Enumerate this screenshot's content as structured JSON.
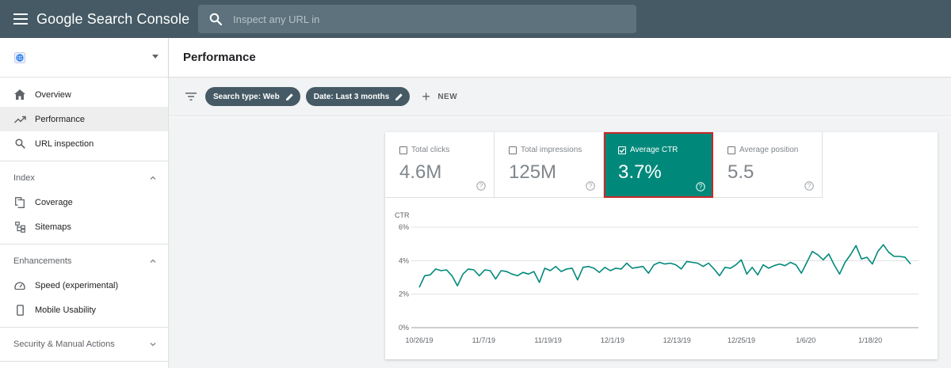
{
  "app": {
    "title": "Google Search Console"
  },
  "search": {
    "placeholder": "Inspect any URL in"
  },
  "sidebar": {
    "top_items": [
      {
        "label": "Overview"
      },
      {
        "label": "Performance"
      },
      {
        "label": "URL inspection"
      }
    ],
    "sections": [
      {
        "title": "Index",
        "items": [
          {
            "label": "Coverage"
          },
          {
            "label": "Sitemaps"
          }
        ]
      },
      {
        "title": "Enhancements",
        "items": [
          {
            "label": "Speed (experimental)"
          },
          {
            "label": "Mobile Usability"
          }
        ]
      },
      {
        "title": "Security & Manual Actions"
      }
    ]
  },
  "page": {
    "title": "Performance"
  },
  "filters": {
    "chips": [
      {
        "label": "Search type: Web"
      },
      {
        "label": "Date: Last 3 months"
      }
    ],
    "new_label": "NEW"
  },
  "metrics": [
    {
      "label": "Total clicks",
      "value": "4.6M",
      "selected": false
    },
    {
      "label": "Total impressions",
      "value": "125M",
      "selected": false
    },
    {
      "label": "Average CTR",
      "value": "3.7%",
      "selected": true
    },
    {
      "label": "Average position",
      "value": "5.5",
      "selected": false
    }
  ],
  "colors": {
    "topbar": "#455a64",
    "accent": "#00897b",
    "highlight_border": "#c62828"
  },
  "chart_data": {
    "type": "line",
    "ylabel": "CTR",
    "ylim": [
      0,
      6
    ],
    "yticks": [
      "0%",
      "2%",
      "4%",
      "6%"
    ],
    "ytick_values": [
      0,
      2,
      4,
      6
    ],
    "xtick_labels": [
      "10/26/19",
      "11/7/19",
      "11/19/19",
      "12/1/19",
      "12/13/19",
      "12/25/19",
      "1/6/20",
      "1/18/20"
    ],
    "series": [
      {
        "name": "Average CTR",
        "values": [
          2.4,
          3.1,
          3.15,
          3.5,
          3.4,
          3.45,
          3.1,
          2.5,
          3.2,
          3.5,
          3.45,
          3.1,
          3.45,
          3.4,
          2.9,
          3.4,
          3.35,
          3.2,
          3.1,
          3.3,
          3.2,
          3.35,
          2.7,
          3.55,
          3.4,
          3.65,
          3.35,
          3.5,
          3.55,
          2.85,
          3.6,
          3.65,
          3.55,
          3.3,
          3.6,
          3.4,
          3.55,
          3.5,
          3.85,
          3.55,
          3.6,
          3.65,
          3.25,
          3.75,
          3.9,
          3.8,
          3.85,
          3.75,
          3.5,
          3.95,
          3.9,
          3.85,
          3.65,
          3.85,
          3.5,
          3.1,
          3.6,
          3.55,
          3.75,
          4.05,
          3.2,
          3.6,
          3.15,
          3.75,
          3.55,
          3.7,
          3.8,
          3.7,
          3.9,
          3.75,
          3.25,
          3.9,
          4.55,
          4.35,
          4.05,
          4.4,
          3.75,
          3.2,
          3.9,
          4.35,
          4.9,
          4.1,
          4.2,
          3.8,
          4.55,
          4.95,
          4.5,
          4.25,
          4.25,
          4.2,
          3.8
        ]
      }
    ]
  }
}
